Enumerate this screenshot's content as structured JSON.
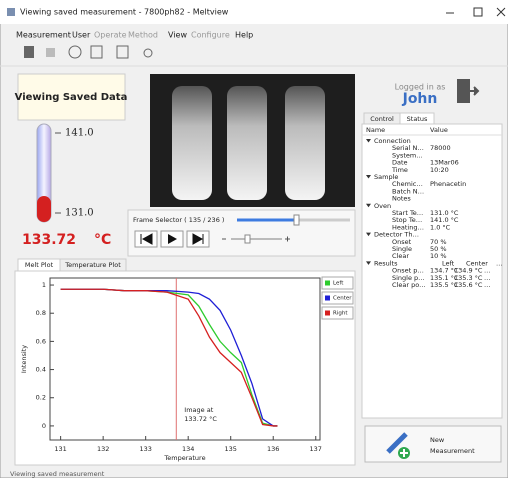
{
  "window": {
    "title": "Viewing saved measurement - 7800ph82 - Meltview"
  },
  "menu": [
    "Measurement",
    "User",
    "Operate",
    "Method",
    "View",
    "Configure",
    "Help"
  ],
  "left_panel": {
    "mode": "Viewing Saved Data",
    "thermometer": {
      "max": "141.0",
      "min": "131.0"
    },
    "current": "133.72",
    "unit": "°C"
  },
  "frame_selector": {
    "label": "Frame Selector ( 135 / 236 )"
  },
  "plot_tabs": [
    "Melt Plot",
    "Temperature Plot"
  ],
  "chart_data": {
    "type": "line",
    "x": [
      131,
      131.5,
      132,
      132.5,
      133,
      133.5,
      134,
      134.25,
      134.5,
      134.75,
      135,
      135.25,
      135.5,
      135.75,
      136,
      136.1
    ],
    "series": [
      {
        "name": "Left",
        "color": "#2ecc2e",
        "values": [
          0.97,
          0.97,
          0.97,
          0.96,
          0.96,
          0.95,
          0.93,
          0.85,
          0.72,
          0.6,
          0.52,
          0.45,
          0.22,
          0.02,
          0,
          0
        ]
      },
      {
        "name": "Center",
        "color": "#1f1fd6",
        "values": [
          0.97,
          0.97,
          0.97,
          0.96,
          0.96,
          0.96,
          0.95,
          0.94,
          0.9,
          0.82,
          0.68,
          0.5,
          0.3,
          0.05,
          0,
          0
        ]
      },
      {
        "name": "Right",
        "color": "#d62020",
        "values": [
          0.97,
          0.97,
          0.97,
          0.96,
          0.96,
          0.95,
          0.9,
          0.78,
          0.63,
          0.52,
          0.45,
          0.38,
          0.2,
          0.01,
          0,
          0
        ]
      }
    ],
    "xlim": [
      130.75,
      137.1
    ],
    "ylim": [
      -0.1,
      1.05
    ],
    "xticks": [
      131,
      132,
      133,
      134,
      135,
      136,
      137
    ],
    "yticks": [
      0,
      0.2,
      0.4,
      0.6,
      0.8,
      1
    ],
    "xlabel": "Temperature",
    "ylabel": "Intensity",
    "annotation": {
      "x": 133.72,
      "lines": [
        "Image at",
        "133.72 °C"
      ]
    }
  },
  "user": {
    "label": "Logged in as",
    "name": "John"
  },
  "side_tabs": [
    "Control",
    "Status"
  ],
  "tree": {
    "columns": [
      "Name",
      "Value"
    ],
    "groups": [
      {
        "name": "Connection",
        "rows": [
          [
            "Serial N…",
            "78000"
          ],
          [
            "System…"
          ],
          [
            "Date",
            "13Mar06"
          ],
          [
            "Time",
            "10:20"
          ]
        ]
      },
      {
        "name": "Sample",
        "rows": [
          [
            "Chemic…",
            "Phenacetin"
          ],
          [
            "Batch N…"
          ],
          [
            "Notes"
          ]
        ]
      },
      {
        "name": "Oven",
        "rows": [
          [
            "Start Te…",
            "131.0 °C"
          ],
          [
            "Stop Te…",
            "141.0 °C"
          ],
          [
            "Heating…",
            "1.0 °C"
          ]
        ]
      },
      {
        "name": "Detector Th…",
        "rows": [
          [
            "Onset",
            "70 %"
          ],
          [
            "Single",
            "50 %"
          ],
          [
            "Clear",
            "10 %"
          ]
        ]
      },
      {
        "name": "Results",
        "values": [
          "Left",
          "Center",
          "…"
        ],
        "rows": [
          [
            "Onset p…",
            "134.7 °C",
            "134.9 °C",
            "…"
          ],
          [
            "Single p…",
            "135.1 °C",
            "135.3 °C",
            "…"
          ],
          [
            "Clear po…",
            "135.5 °C",
            "135.6 °C",
            "…"
          ]
        ]
      }
    ]
  },
  "button": [
    "New",
    "Measurement"
  ],
  "status_bar": "Viewing saved measurement"
}
